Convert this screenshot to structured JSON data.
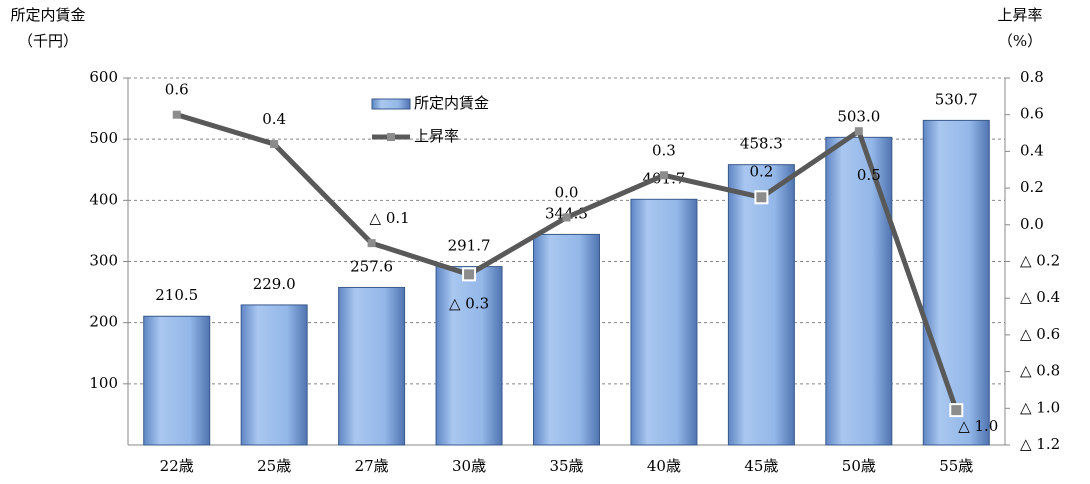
{
  "chart_data": {
    "type": "bar-line",
    "y_title": "所定内賃金",
    "y_unit": "（千円）",
    "y2_title": "上昇率",
    "y2_unit": "（%）",
    "categories": [
      "22歳",
      "25歳",
      "27歳",
      "30歳",
      "35歳",
      "40歳",
      "45歳",
      "50歳",
      "55歳"
    ],
    "series": [
      {
        "name": "所定内賃金",
        "type": "bar",
        "color": "#8fb4e6",
        "values": [
          210.5,
          229.0,
          257.6,
          291.7,
          344.3,
          401.7,
          458.3,
          503.0,
          530.7
        ],
        "value_labels": [
          "210.5",
          "229.0",
          "257.6",
          "291.7",
          "344.3",
          "401.7",
          "458.3",
          "503.0",
          "530.7"
        ]
      },
      {
        "name": "上昇率",
        "type": "line",
        "axis": "y2",
        "color": "#595959",
        "values": [
          0.6,
          0.44,
          -0.1,
          -0.27,
          0.04,
          0.27,
          0.15,
          0.51,
          -1.01
        ],
        "value_labels": [
          "0.6",
          "0.4",
          "△ 0.1",
          "△ 0.3",
          "0.0",
          "0.3",
          "0.2",
          "0.5",
          "△ 1.0"
        ]
      }
    ],
    "ylim": [
      0,
      600
    ],
    "yticks": [
      100,
      200,
      300,
      400,
      500,
      600
    ],
    "y2lim": [
      -1.2,
      0.8
    ],
    "y2ticks": [
      0.8,
      0.6,
      0.4,
      0.2,
      {
        "value": 0,
        "label": "0.0"
      },
      {
        "value": -0.2,
        "label": "△ 0.2"
      },
      {
        "value": -0.4,
        "label": "△ 0.4"
      },
      {
        "value": -0.6,
        "label": "△ 0.6"
      },
      {
        "value": -0.8,
        "label": "△ 0.8"
      },
      {
        "value": -1.0,
        "label": "△ 1.0"
      },
      {
        "value": -1.2,
        "label": "△ 1.2"
      }
    ],
    "grid": true
  }
}
